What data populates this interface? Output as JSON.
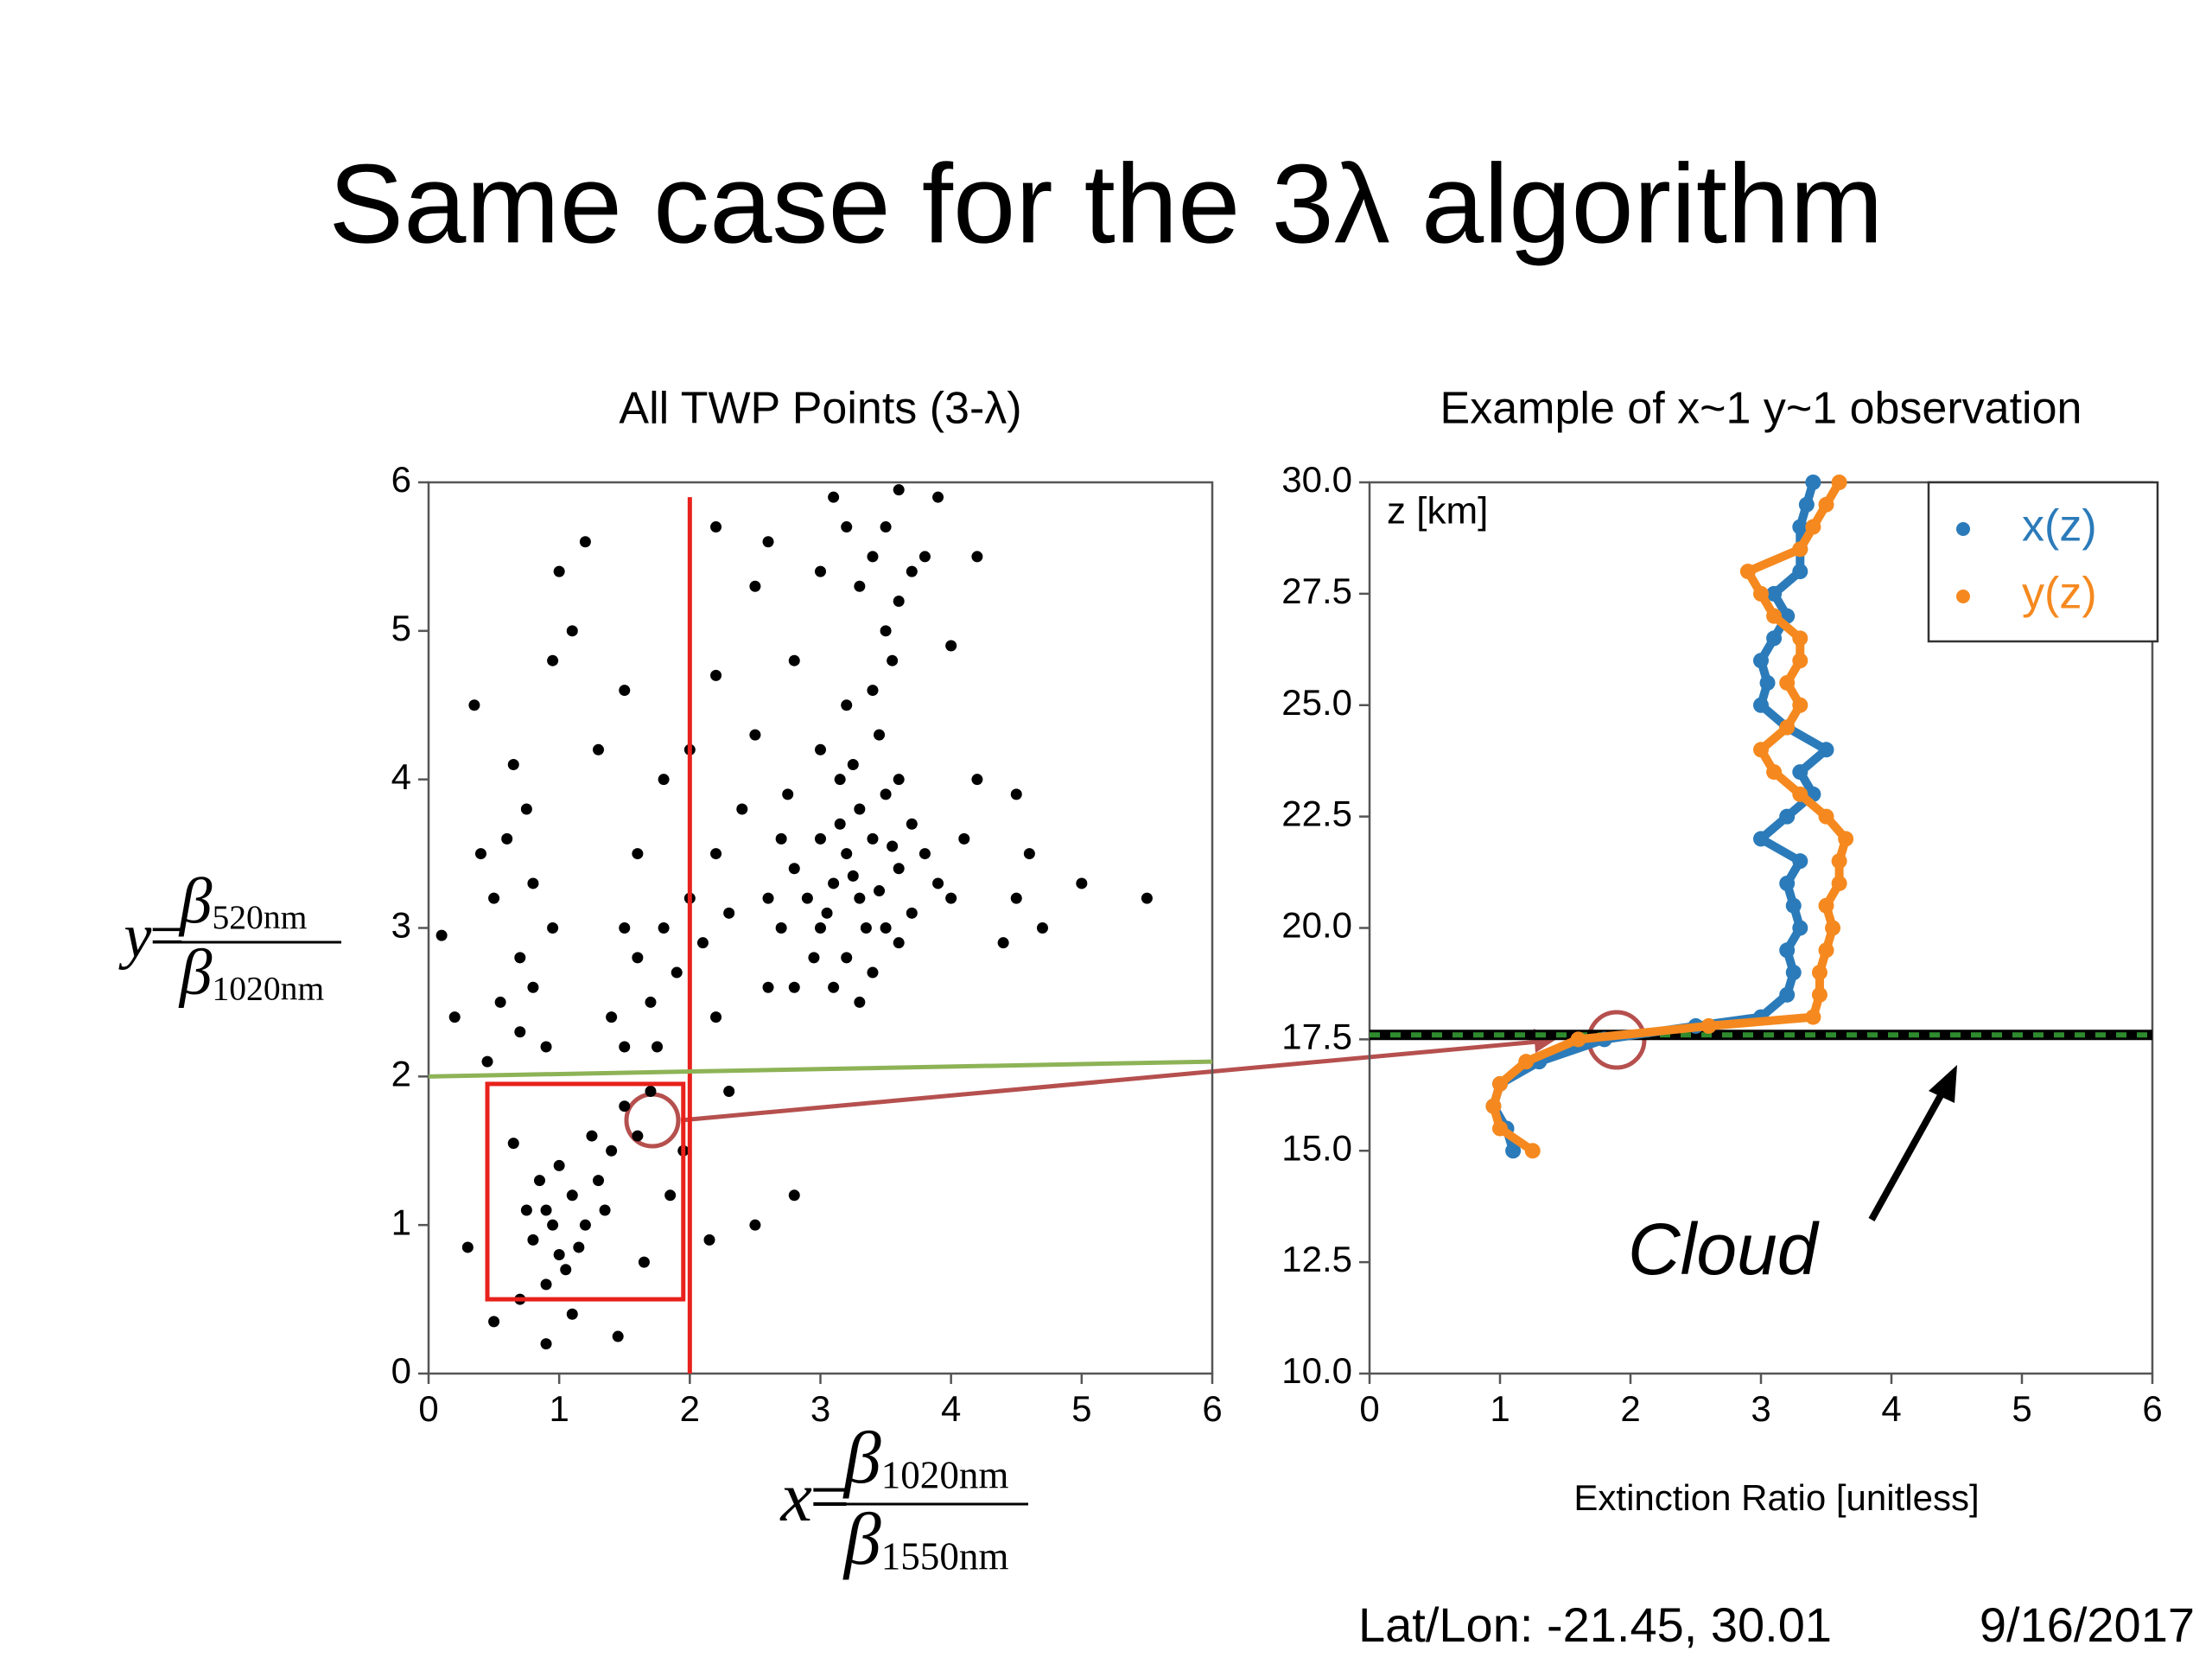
{
  "title": "Same case for the 3λ algorithm",
  "footer": {
    "location": "Lat/Lon: -21.45, 30.01",
    "date": "9/16/2017"
  },
  "chart_data": [
    {
      "type": "scatter",
      "title": "All TWP Points (3-λ)",
      "color": "#000000",
      "xlabel": {
        "var": "x",
        "eq": "=",
        "num": "β",
        "num_sub": "1020nm",
        "den": "β",
        "den_sub": "1550nm"
      },
      "ylabel": {
        "var": "y",
        "eq": "=",
        "num": "β",
        "num_sub": "520nm",
        "den": "β",
        "den_sub": "1020nm"
      },
      "xlim": [
        0,
        6
      ],
      "ylim": [
        0,
        6
      ],
      "xticks": [
        0,
        1,
        2,
        3,
        4,
        5,
        6
      ],
      "yticks": [
        0,
        1,
        2,
        3,
        4,
        5,
        6
      ],
      "vline": {
        "x": 2,
        "y": [
          0,
          5.9
        ]
      },
      "box": {
        "x": [
          0.45,
          1.95
        ],
        "y": [
          0.5,
          1.95
        ]
      },
      "green_line": {
        "x": [
          0,
          6
        ],
        "y": [
          2,
          2.1
        ]
      },
      "x": [
        0.8,
        0.9,
        1.0,
        1.1,
        0.95,
        1.05,
        0.85,
        1.2,
        0.9,
        1.0,
        1.15,
        0.75,
        1.3,
        1.25,
        1.4,
        1.5,
        1.6,
        1.7,
        1.35,
        0.7,
        1.1,
        0.9,
        1.45,
        0.3,
        0.5,
        0.65,
        0.6,
        0.5,
        0.7,
        0.8,
        0.55,
        0.9,
        0.65,
        0.35,
        0.95,
        1.0,
        1.2,
        0.4,
        0.8,
        0.95,
        0.45,
        0.7,
        0.2,
        0.1,
        0.75,
        1.1,
        1.5,
        1.3,
        1.4,
        1.5,
        1.6,
        1.7,
        1.8,
        1.9,
        2.0,
        2.1,
        2.2,
        2.3,
        2.4,
        1.6,
        1.8,
        2.0,
        2.5,
        2.6,
        2.7,
        1.5,
        1.75,
        2.2,
        2.8,
        2.5,
        2.15,
        1.95,
        1.85,
        1.65,
        3.0,
        3.1,
        3.2,
        3.3,
        3.4,
        3.5,
        3.6,
        3.2,
        3.0,
        2.9,
        3.3,
        3.5,
        3.7,
        3.8,
        3.1,
        3.4,
        2.8,
        2.7,
        3.6,
        3.9,
        3.25,
        3.45,
        3.15,
        3.6,
        3.0,
        2.75,
        3.35,
        3.05,
        3.25,
        3.45,
        3.55,
        3.15,
        2.95,
        3.7,
        3.3,
        4.0,
        4.1,
        2.6,
        3.4,
        3.55,
        3.2,
        3.5,
        3.3,
        3.6,
        3.4,
        3.2,
        3.1,
        3.5,
        3.7,
        3.0,
        2.6,
        2.2,
        3.8,
        3.9,
        4.2,
        3.6,
        2.5,
        2.2,
        2.8,
        4.0,
        4.2,
        4.5,
        4.6,
        4.4,
        4.7,
        5.0,
        5.5,
        4.5,
        2.8,
        2.3
      ],
      "values": [
        0.9,
        1.1,
        0.8,
        1.2,
        1.0,
        0.7,
        1.3,
        1.0,
        0.6,
        1.4,
        0.85,
        1.1,
        1.3,
        1.6,
        1.5,
        1.8,
        1.6,
        1.9,
        1.1,
        0.5,
        0.4,
        0.2,
        0.25,
        0.85,
        0.35,
        1.55,
        3.6,
        3.2,
        2.8,
        3.3,
        2.5,
        2.2,
        4.1,
        4.5,
        4.8,
        5.4,
        5.6,
        3.5,
        2.6,
        3.0,
        2.1,
        2.3,
        2.4,
        2.95,
        3.8,
        5.0,
        4.6,
        4.2,
        2.4,
        2.2,
        2.8,
        2.5,
        3.0,
        2.7,
        3.2,
        2.9,
        3.5,
        3.1,
        3.8,
        3.5,
        4.0,
        4.2,
        4.3,
        2.6,
        3.0,
        3.0,
        2.2,
        2.4,
        1.2,
        1.0,
        0.9,
        1.5,
        1.2,
        0.75,
        3.0,
        3.3,
        3.5,
        3.2,
        3.6,
        3.0,
        3.4,
        2.8,
        3.6,
        3.2,
        3.8,
        3.9,
        3.1,
        3.5,
        2.6,
        2.7,
        3.4,
        3.6,
        2.9,
        3.3,
        4.1,
        4.3,
        4.0,
        4.0,
        4.2,
        3.9,
        3.0,
        3.1,
        3.35,
        3.25,
        3.55,
        3.7,
        2.8,
        3.7,
        2.5,
        3.2,
        3.6,
        3.2,
        4.6,
        4.8,
        4.5,
        5.0,
        5.3,
        5.2,
        5.5,
        5.7,
        5.9,
        5.7,
        5.4,
        5.4,
        5.6,
        5.7,
        5.5,
        5.9,
        5.5,
        5.95,
        5.3,
        4.7,
        4.8,
        4.9,
        4.0,
        3.9,
        3.5,
        2.9,
        3.0,
        3.3,
        3.2,
        3.2,
        2.6,
        1.9
      ]
    },
    {
      "type": "line",
      "title": "Example of x~1 y~1 observation",
      "xlabel": "Extinction Ratio [unitless]",
      "ylabel": "z [km]",
      "xlim": [
        0,
        6
      ],
      "ylim": [
        10,
        30
      ],
      "xticks": [
        0,
        1,
        2,
        3,
        4,
        5,
        6
      ],
      "yticks": [
        {
          "value": 10,
          "label": "10.0"
        },
        12.5,
        {
          "value": 15,
          "label": "15.0"
        },
        17.5,
        {
          "value": 20,
          "label": "20.0"
        },
        22.5,
        {
          "value": 25,
          "label": "25.0"
        },
        27.5,
        {
          "value": 30,
          "label": "30.0"
        }
      ],
      "hline": 17.6,
      "annotation": "Cloud",
      "legend": "upper right",
      "series": [
        {
          "name": "x(z)",
          "color": "#2b7bba",
          "x": [
            1.1,
            1.05,
            0.95,
            1.0,
            1.3,
            1.8,
            2.5,
            3.0,
            3.2,
            3.25,
            3.2,
            3.3,
            3.25,
            3.2,
            3.3,
            3.0,
            3.2,
            3.4,
            3.3,
            3.5,
            3.2,
            3.0,
            3.05,
            3.0,
            3.1,
            3.2,
            3.1,
            3.3,
            3.3,
            3.3,
            3.35,
            3.4
          ],
          "values": [
            15,
            15.5,
            16,
            16.5,
            17,
            17.5,
            17.8,
            18,
            18.5,
            19,
            19.5,
            20,
            20.5,
            21,
            21.5,
            22,
            22.5,
            23,
            23.5,
            24,
            24.5,
            25,
            25.5,
            26,
            26.5,
            27,
            27.5,
            28,
            28.5,
            29,
            29.5,
            30
          ]
        },
        {
          "name": "y(z)",
          "color": "#f5891f",
          "x": [
            1.25,
            1.0,
            0.95,
            1.0,
            1.2,
            1.6,
            2.6,
            3.4,
            3.45,
            3.45,
            3.5,
            3.55,
            3.5,
            3.6,
            3.6,
            3.65,
            3.5,
            3.3,
            3.1,
            3.0,
            3.2,
            3.3,
            3.2,
            3.3,
            3.3,
            3.1,
            3.0,
            2.9,
            3.3,
            3.4,
            3.5,
            3.6
          ],
          "values": [
            15,
            15.5,
            16,
            16.5,
            17,
            17.5,
            17.8,
            18,
            18.5,
            19,
            19.5,
            20,
            20.5,
            21,
            21.5,
            22,
            22.5,
            23,
            23.5,
            24,
            24.5,
            25,
            25.5,
            26,
            26.5,
            27,
            27.5,
            28,
            28.5,
            29,
            29.5,
            30
          ]
        }
      ]
    }
  ]
}
